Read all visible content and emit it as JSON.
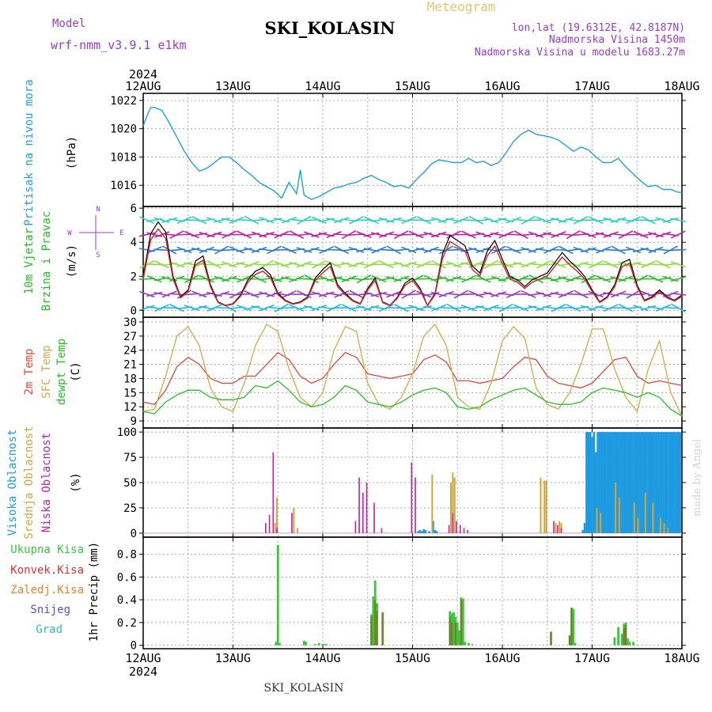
{
  "header": {
    "model_label": "Model",
    "model_name": "wrf-nmm_v3.9.1  e1km",
    "station": "SKI_KOLASIN",
    "meteogram_label": "Meteogram",
    "lonlat": "lon,lat (19.6312E, 42.8187N)",
    "altitude": "Nadmorska Visina 1450m",
    "model_altitude": "Nadmorska Visina u modelu 1683.27m",
    "year": "2024"
  },
  "footer": {
    "year": "2024",
    "station": "SKI_KOLASIN",
    "credit": "made by Angel"
  },
  "colors": {
    "pressure": "#1ea0e6",
    "wind_speed_label": "#20c020",
    "temp2m": "#e8463c",
    "sfc_temp": "#d4a84a",
    "dewpt": "#22c322",
    "cloud_high": "#1e9be0",
    "cloud_mid": "#d2a43c",
    "cloud_low": "#c0229a",
    "rain_total": "#3ac73a",
    "rain_conv": "#e83030",
    "freezing": "#f08030",
    "snow": "#5050e8",
    "graupel": "#30c0b0",
    "side_label": "#9b39d6"
  },
  "time_axis": {
    "days": [
      "12AUG",
      "13AUG",
      "14AUG",
      "15AUG",
      "16AUG",
      "17AUG",
      "18AUG"
    ]
  },
  "chart_data": [
    {
      "type": "line",
      "name": "pressure",
      "ylabel_left": "Pritisak na nivou mora",
      "ylabel_unit": "(hPa)",
      "ylim": [
        1014.5,
        1022.5
      ],
      "yticks": [
        1016,
        1018,
        1020,
        1022
      ],
      "grid": true,
      "x_hours": [
        0,
        1,
        2,
        3,
        5,
        7,
        9,
        11,
        13,
        15,
        17,
        19,
        21,
        23,
        25,
        27,
        29,
        31,
        33,
        35,
        37,
        39,
        41,
        42,
        43,
        45,
        47,
        49,
        51,
        53,
        55,
        57,
        59,
        61,
        63,
        65,
        67,
        69,
        71,
        73,
        75,
        77,
        79,
        81,
        83,
        85,
        87,
        89,
        91,
        93,
        95,
        97,
        99,
        101,
        103,
        105,
        107,
        109,
        111,
        113,
        115,
        117,
        119,
        121,
        123,
        125,
        127,
        129,
        131,
        133,
        135,
        137,
        139,
        141,
        143,
        144
      ],
      "values": [
        1020.2,
        1020.9,
        1021.5,
        1021.5,
        1021.3,
        1020.4,
        1019.4,
        1018.4,
        1017.6,
        1017.0,
        1017.2,
        1017.6,
        1018.0,
        1018.0,
        1017.6,
        1017.1,
        1016.7,
        1016.2,
        1015.9,
        1015.6,
        1015.1,
        1016.2,
        1015.4,
        1017.1,
        1015.3,
        1015.0,
        1015.2,
        1015.5,
        1015.8,
        1015.9,
        1016.1,
        1016.2,
        1016.5,
        1016.7,
        1016.4,
        1016.2,
        1015.9,
        1016.0,
        1015.8,
        1016.4,
        1016.9,
        1017.5,
        1017.8,
        1017.7,
        1017.6,
        1017.6,
        1017.9,
        1017.6,
        1017.7,
        1017.4,
        1017.6,
        1018.3,
        1019.1,
        1019.6,
        1019.9,
        1019.6,
        1019.5,
        1019.4,
        1019.2,
        1018.8,
        1018.4,
        1018.7,
        1018.5,
        1018.0,
        1017.6,
        1017.6,
        1017.9,
        1017.3,
        1016.8,
        1016.3,
        1015.9,
        1016.0,
        1015.7,
        1015.7,
        1015.5,
        1015.5
      ]
    },
    {
      "type": "line",
      "name": "wind",
      "ylabel_left": "10m Vjetar",
      "ylabel_left2": "Brzina i Pravac",
      "ylabel_unit": "(m/s)",
      "compass": {
        "n": "N",
        "s": "S",
        "w": "W",
        "e": "E"
      },
      "ylim": [
        -0.4,
        6.1
      ],
      "yticks": [
        0,
        2,
        4,
        6
      ],
      "x_hours": [
        0,
        2,
        4,
        6,
        8,
        10,
        12,
        14,
        16,
        18,
        20,
        22,
        24,
        26,
        28,
        30,
        32,
        34,
        36,
        38,
        40,
        42,
        44,
        46,
        48,
        50,
        52,
        54,
        56,
        58,
        60,
        62,
        64,
        66,
        68,
        70,
        72,
        74,
        76,
        78,
        80,
        82,
        84,
        86,
        88,
        90,
        92,
        94,
        96,
        98,
        100,
        102,
        104,
        106,
        108,
        110,
        112,
        114,
        116,
        118,
        120,
        122,
        124,
        126,
        128,
        130,
        132,
        134,
        136,
        138,
        140,
        142,
        144
      ],
      "values": [
        2.0,
        4.5,
        5.2,
        4.6,
        2.0,
        0.8,
        1.2,
        2.9,
        3.2,
        1.5,
        0.5,
        0.3,
        0.4,
        0.9,
        1.8,
        2.3,
        2.5,
        2.1,
        1.0,
        0.6,
        0.4,
        0.5,
        0.8,
        1.9,
        2.4,
        2.8,
        1.5,
        1.0,
        0.6,
        0.4,
        1.3,
        1.9,
        0.5,
        0.3,
        0.8,
        1.6,
        1.9,
        1.3,
        0.3,
        1.0,
        3.3,
        4.4,
        4.1,
        3.8,
        2.6,
        2.2,
        3.5,
        4.1,
        3.0,
        2.0,
        1.8,
        1.4,
        1.8,
        2.0,
        2.2,
        2.8,
        3.4,
        2.9,
        2.5,
        2.0,
        1.2,
        0.5,
        0.8,
        1.5,
        2.8,
        3.0,
        1.5,
        0.6,
        0.8,
        1.2,
        0.8,
        0.6,
        0.9
      ]
    },
    {
      "type": "line",
      "name": "temperature",
      "ylabel_left": "2m Temp",
      "ylabel_left2": "SFC Temp",
      "ylabel_left3": "dewpt Temp",
      "ylabel_unit": "(C)",
      "ylim": [
        7.5,
        31.0
      ],
      "yticks": [
        9,
        12,
        15,
        18,
        21,
        24,
        27,
        30
      ],
      "x_hours": [
        0,
        3,
        6,
        9,
        12,
        15,
        18,
        21,
        24,
        27,
        30,
        33,
        36,
        39,
        42,
        45,
        48,
        51,
        54,
        57,
        60,
        63,
        66,
        69,
        72,
        75,
        78,
        81,
        84,
        87,
        90,
        93,
        96,
        99,
        102,
        105,
        108,
        111,
        114,
        117,
        120,
        123,
        126,
        129,
        132,
        135,
        138,
        141,
        144
      ],
      "series": [
        {
          "name": "2m Temp",
          "values": [
            13.0,
            12.5,
            15.5,
            20.5,
            22.5,
            21.0,
            18.0,
            17.0,
            17.0,
            18.5,
            18.5,
            21.0,
            23.5,
            22.0,
            18.5,
            17.0,
            18.0,
            21.0,
            23.5,
            22.5,
            19.0,
            18.5,
            18.0,
            18.5,
            19.0,
            22.0,
            23.0,
            21.5,
            17.5,
            17.5,
            17.0,
            17.5,
            18.0,
            20.5,
            22.5,
            22.0,
            18.5,
            17.0,
            16.5,
            16.0,
            17.0,
            19.5,
            22.0,
            22.5,
            18.5,
            17.0,
            17.5,
            17.0,
            16.5
          ]
        },
        {
          "name": "SFC Temp",
          "values": [
            11.0,
            11.5,
            18.5,
            27.0,
            29.0,
            25.0,
            16.0,
            12.0,
            11.0,
            17.0,
            25.0,
            29.5,
            28.0,
            20.0,
            14.0,
            12.0,
            15.0,
            24.0,
            29.0,
            28.0,
            17.0,
            12.5,
            11.5,
            14.0,
            19.0,
            27.0,
            29.5,
            25.0,
            14.0,
            12.0,
            11.5,
            17.0,
            26.0,
            29.0,
            26.5,
            16.0,
            12.5,
            11.5,
            15.0,
            21.0,
            28.5,
            28.5,
            20.0,
            14.0,
            11.0,
            20.0,
            26.0,
            15.0,
            10.0
          ]
        },
        {
          "name": "dewpt Temp",
          "values": [
            11.0,
            10.5,
            13.0,
            14.5,
            15.5,
            15.5,
            14.0,
            13.5,
            13.5,
            14.0,
            16.5,
            16.0,
            17.5,
            15.5,
            13.0,
            12.0,
            12.5,
            14.0,
            16.5,
            15.5,
            13.0,
            12.5,
            12.0,
            13.0,
            14.5,
            15.5,
            16.0,
            15.0,
            12.0,
            11.5,
            12.0,
            13.5,
            14.5,
            15.5,
            16.0,
            14.5,
            13.0,
            12.5,
            12.5,
            13.0,
            15.0,
            16.0,
            15.5,
            15.0,
            14.0,
            15.0,
            14.0,
            11.5,
            10.0
          ]
        }
      ]
    },
    {
      "type": "bar",
      "name": "clouds",
      "ylabel_left": "Visoka Oblacnost",
      "ylabel_left2": "Srednja Oblacnost",
      "ylabel_left3": "Niska Oblacnost",
      "ylabel_unit": "(%)",
      "ylim": [
        -4,
        104
      ],
      "yticks": [
        0,
        25,
        50,
        75,
        100
      ],
      "series": [
        {
          "name": "Visoka",
          "x_hours": [
            73.5,
            74.0,
            74.5,
            75.0,
            75.5,
            76.5,
            77.5,
            78.0,
            78.5,
            117.5,
            118.0,
            118.5,
            119.0,
            119.5,
            120.0,
            120.5,
            121.0,
            121.5,
            122.0,
            122.5,
            123.0,
            123.5,
            124.0,
            124.5,
            125.0,
            125.5,
            126.0,
            126.5,
            127.0,
            127.5,
            128.0,
            128.5,
            129.0,
            129.5,
            130.0,
            130.5,
            131.0,
            131.5,
            132.0,
            132.5,
            133.0,
            133.5,
            134.0,
            134.5,
            135.0,
            135.5,
            136.0,
            136.5,
            137.0,
            137.5,
            138.0,
            138.5,
            139.0,
            139.5,
            140.0,
            140.5,
            141.0,
            141.5,
            142.0,
            142.5,
            143.0,
            143.5
          ],
          "values": [
            2,
            3,
            2,
            4,
            3,
            2,
            12,
            3,
            2,
            3,
            10,
            100,
            100,
            100,
            95,
            100,
            80,
            100,
            100,
            100,
            100,
            100,
            100,
            100,
            100,
            100,
            100,
            100,
            100,
            100,
            100,
            100,
            100,
            100,
            100,
            100,
            100,
            100,
            100,
            100,
            100,
            100,
            100,
            100,
            100,
            100,
            100,
            100,
            100,
            100,
            100,
            100,
            100,
            100,
            100,
            100,
            100,
            100,
            100,
            100,
            100,
            100
          ]
        },
        {
          "name": "Srednja",
          "x_hours": [
            35.0,
            35.5,
            40.0,
            41.0,
            77.0,
            82.0,
            82.5,
            83.0,
            106.0,
            107.0,
            107.5,
            110.0,
            111.0,
            111.5,
            121.0,
            122.0,
            126.0,
            127.0,
            131.0,
            132.0,
            134.0,
            136.0,
            138.0,
            139.0,
            140.0
          ],
          "values": [
            10,
            35,
            25,
            5,
            58,
            50,
            60,
            55,
            55,
            52,
            52,
            10,
            12,
            10,
            25,
            20,
            50,
            35,
            30,
            15,
            40,
            30,
            15,
            10,
            5
          ]
        },
        {
          "name": "Niska",
          "x_hours": [
            33.0,
            34.0,
            35.0,
            36.0,
            40.0,
            57.0,
            58.0,
            59.0,
            60.0,
            62.0,
            64.0,
            72.0,
            73.0,
            82.0,
            83.0,
            84.0,
            85.0,
            86.0,
            87.0,
            110.0,
            111.0,
            112.0
          ],
          "values": [
            10,
            18,
            80,
            5,
            20,
            12,
            55,
            40,
            50,
            30,
            5,
            70,
            55,
            8,
            20,
            12,
            8,
            5,
            3,
            12,
            8,
            5
          ]
        }
      ]
    },
    {
      "type": "bar",
      "name": "precipitation",
      "legend": [
        "Ukupna Kisa",
        "Konvek.Kisa",
        "Zaledj.Kisa",
        "Snijeg",
        "Grad"
      ],
      "ylabel_unit": "1hr Precip (mm)",
      "ylim": [
        -0.03,
        0.95
      ],
      "yticks": [
        0,
        0.2,
        0.4,
        0.6,
        0.8
      ],
      "series": [
        {
          "name": "Ukupna Kisa",
          "x_hours": [
            35.5,
            36.0,
            36.5,
            43.0,
            43.5,
            46.0,
            47.0,
            48.0,
            48.5,
            49.0,
            61.0,
            61.5,
            62.0,
            62.5,
            64.0,
            82.0,
            82.5,
            83.0,
            83.5,
            84.0,
            84.5,
            85.0,
            85.5,
            86.0,
            87.0,
            88.0,
            109.0,
            114.0,
            114.5,
            115.0,
            115.5,
            126.0,
            127.0,
            128.0,
            128.5,
            129.0,
            129.5,
            130.0,
            131.0
          ],
          "values": [
            0.03,
            0.88,
            0.02,
            0.04,
            0.03,
            0.01,
            0.02,
            0.01,
            0.01,
            0.01,
            0.27,
            0.43,
            0.57,
            0.37,
            0.29,
            0.3,
            0.28,
            0.29,
            0.25,
            0.2,
            0.13,
            0.42,
            0.41,
            0.03,
            0.02,
            0.01,
            0.12,
            0.09,
            0.33,
            0.32,
            0.02,
            0.07,
            0.16,
            0.1,
            0.19,
            0.2,
            0.06,
            0.03,
            0.03
          ]
        },
        {
          "name": "Konvek.Kisa",
          "x_hours": [
            61.0,
            62.0,
            62.5,
            64.0,
            82.0,
            82.5,
            83.5,
            85.0,
            109.0,
            114.0,
            114.5,
            128.5,
            129.0
          ],
          "values": [
            0.25,
            0.4,
            0.3,
            0.28,
            0.25,
            0.2,
            0.2,
            0.4,
            0.12,
            0.08,
            0.33,
            0.15,
            0.18
          ]
        }
      ]
    }
  ]
}
